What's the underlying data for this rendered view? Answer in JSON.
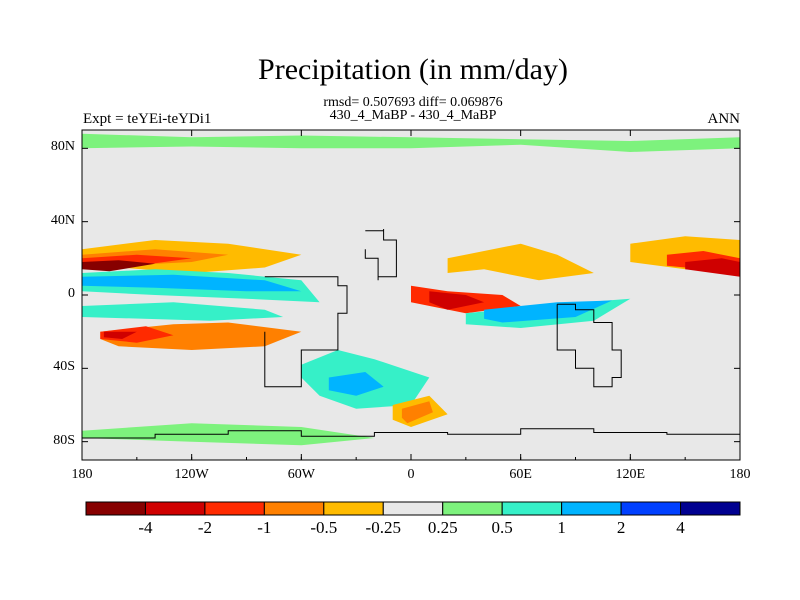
{
  "chart_data": {
    "type": "contour-map",
    "title": "Precipitation (in mm/day)",
    "stats": "rmsd= 0.507693 diff= 0.069876",
    "subtitle": "430_4_MaBP - 430_4_MaBP",
    "left_string": "Expt = teYEi-teYDi1",
    "right_string": "ANN",
    "xlim": [
      -180,
      180
    ],
    "ylim": [
      -90,
      90
    ],
    "x_ticks": [
      {
        "value": -180,
        "label": "180"
      },
      {
        "value": -120,
        "label": "120W"
      },
      {
        "value": -60,
        "label": "60W"
      },
      {
        "value": 0,
        "label": "0"
      },
      {
        "value": 60,
        "label": "60E"
      },
      {
        "value": 120,
        "label": "120E"
      },
      {
        "value": 180,
        "label": "180"
      }
    ],
    "y_ticks": [
      {
        "value": 80,
        "label": "80N"
      },
      {
        "value": 40,
        "label": "40N"
      },
      {
        "value": 0,
        "label": "0"
      },
      {
        "value": -40,
        "label": "40S"
      },
      {
        "value": -80,
        "label": "80S"
      }
    ],
    "levels": [
      -4,
      -2,
      -1,
      -0.5,
      -0.25,
      0.25,
      0.5,
      1,
      2,
      4
    ],
    "level_labels": [
      "-4",
      "-2",
      "-1",
      "-0.5",
      "-0.25",
      "0.25",
      "0.5",
      "1",
      "2",
      "4"
    ],
    "colors": [
      "#870000",
      "#cf0000",
      "#ff2a00",
      "#ff8000",
      "#ffbb00",
      "#e8e8e8",
      "#7df27d",
      "#36f0c8",
      "#00b4ff",
      "#0040ff",
      "#000090"
    ],
    "field_regions": [
      {
        "lon": [
          -180,
          -140,
          -100,
          -60,
          -80,
          -120,
          -160,
          -180
        ],
        "lat": [
          25,
          30,
          28,
          22,
          15,
          12,
          15,
          18
        ],
        "level": 4
      },
      {
        "lon": [
          -180,
          -140,
          -100,
          -120,
          -160,
          -180
        ],
        "lat": [
          22,
          25,
          22,
          18,
          16,
          18
        ],
        "level": 3
      },
      {
        "lon": [
          -180,
          -150,
          -120,
          -150,
          -180
        ],
        "lat": [
          20,
          22,
          20,
          16,
          15
        ],
        "level": 2
      },
      {
        "lon": [
          -180,
          -160,
          -140,
          -165,
          -180
        ],
        "lat": [
          18,
          19,
          17,
          13,
          14
        ],
        "level": 0
      },
      {
        "lon": [
          -180,
          -140,
          -100,
          -60,
          -50,
          -90,
          -140,
          -180
        ],
        "lat": [
          12,
          14,
          12,
          8,
          -4,
          -2,
          0,
          2
        ],
        "level": 7
      },
      {
        "lon": [
          -180,
          -130,
          -80,
          -60,
          -90,
          -140,
          -180
        ],
        "lat": [
          10,
          11,
          8,
          2,
          2,
          4,
          5
        ],
        "level": 8
      },
      {
        "lon": [
          -180,
          -130,
          -80,
          -70,
          -110,
          -180
        ],
        "lat": [
          -6,
          -4,
          -8,
          -12,
          -14,
          -12
        ],
        "level": 7
      },
      {
        "lon": [
          -170,
          -130,
          -100,
          -60,
          -80,
          -120,
          -160,
          -170
        ],
        "lat": [
          -20,
          -16,
          -15,
          -20,
          -28,
          -30,
          -28,
          -24
        ],
        "level": 3
      },
      {
        "lon": [
          -170,
          -145,
          -130,
          -150,
          -170
        ],
        "lat": [
          -20,
          -17,
          -22,
          -26,
          -24
        ],
        "level": 2
      },
      {
        "lon": [
          -168,
          -150,
          -158,
          -168
        ],
        "lat": [
          -20,
          -20,
          -24,
          -23
        ],
        "level": 1
      },
      {
        "lon": [
          -60,
          -40,
          -20,
          10,
          0,
          -30,
          -50,
          -60
        ],
        "lat": [
          -38,
          -30,
          -35,
          -45,
          -60,
          -62,
          -55,
          -45
        ],
        "level": 7
      },
      {
        "lon": [
          -45,
          -25,
          -15,
          -30,
          -45
        ],
        "lat": [
          -45,
          -42,
          -50,
          -55,
          -52
        ],
        "level": 8
      },
      {
        "lon": [
          -10,
          10,
          20,
          0,
          -10
        ],
        "lat": [
          -60,
          -55,
          -65,
          -72,
          -68
        ],
        "level": 4
      },
      {
        "lon": [
          -5,
          10,
          12,
          -2,
          -5
        ],
        "lat": [
          -62,
          -58,
          -64,
          -70,
          -67
        ],
        "level": 3
      },
      {
        "lon": [
          20,
          60,
          80,
          100,
          70,
          40,
          20
        ],
        "lat": [
          20,
          28,
          22,
          12,
          8,
          14,
          12
        ],
        "level": 4
      },
      {
        "lon": [
          0,
          20,
          50,
          60,
          30,
          0
        ],
        "lat": [
          5,
          2,
          0,
          -6,
          -10,
          -4
        ],
        "level": 2
      },
      {
        "lon": [
          10,
          30,
          40,
          20,
          10
        ],
        "lat": [
          2,
          0,
          -4,
          -8,
          -4
        ],
        "level": 1
      },
      {
        "lon": [
          30,
          80,
          120,
          100,
          60,
          30
        ],
        "lat": [
          -10,
          -5,
          -2,
          -14,
          -18,
          -16
        ],
        "level": 7
      },
      {
        "lon": [
          40,
          80,
          110,
          90,
          50,
          40
        ],
        "lat": [
          -8,
          -4,
          -3,
          -12,
          -15,
          -13
        ],
        "level": 8
      },
      {
        "lon": [
          -180,
          -120,
          -60,
          0,
          60,
          120,
          180,
          180,
          120,
          60,
          0,
          -60,
          -120,
          -180
        ],
        "lat": [
          88,
          86,
          87,
          86,
          85,
          84,
          86,
          80,
          78,
          82,
          80,
          80,
          81,
          80
        ],
        "level": 6
      },
      {
        "lon": [
          -180,
          -120,
          -60,
          -20,
          -60,
          -120,
          -180
        ],
        "lat": [
          -74,
          -70,
          -72,
          -78,
          -82,
          -80,
          -78
        ],
        "level": 6
      },
      {
        "lon": [
          120,
          150,
          180,
          180,
          150,
          120
        ],
        "lat": [
          28,
          32,
          30,
          12,
          14,
          18
        ],
        "level": 4
      },
      {
        "lon": [
          140,
          160,
          180,
          180,
          160,
          140
        ],
        "lat": [
          22,
          24,
          20,
          12,
          14,
          16
        ],
        "level": 2
      },
      {
        "lon": [
          150,
          170,
          180,
          180,
          165,
          150
        ],
        "lat": [
          18,
          20,
          18,
          10,
          12,
          14
        ],
        "level": 1
      }
    ],
    "coastlines": [
      {
        "lon": [
          -25,
          -15,
          -15,
          -8,
          -8,
          -18,
          -18,
          -25
        ],
        "lat": [
          35,
          36,
          30,
          29,
          10,
          8,
          20,
          25
        ]
      },
      {
        "lon": [
          -80,
          -40,
          -35,
          -40,
          -60,
          -75,
          -80
        ],
        "lat": [
          10,
          5,
          -10,
          -30,
          -50,
          -50,
          -20
        ]
      },
      {
        "lon": [
          80,
          90,
          100,
          110,
          115,
          110,
          100,
          90,
          80
        ],
        "lat": [
          -5,
          -8,
          -15,
          -30,
          -45,
          -50,
          -40,
          -30,
          -5
        ]
      },
      {
        "lon": [
          -180,
          -140,
          -100,
          -60,
          -20,
          20,
          60,
          100,
          140,
          180
        ],
        "lat": [
          -78,
          -76,
          -74,
          -77,
          -75,
          -76,
          -73,
          -75,
          -76,
          -78
        ]
      }
    ]
  }
}
